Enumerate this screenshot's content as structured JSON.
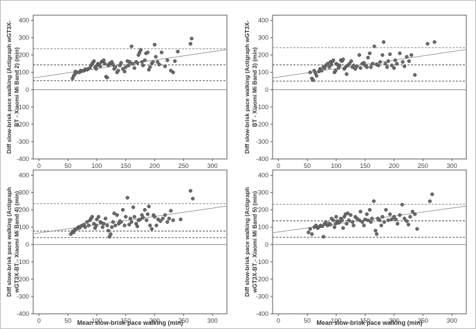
{
  "chart_data": [
    {
      "type": "scatter",
      "ylabel_lines": [
        "Diff slow-brisk pace walking (Actigraph wGT3X-",
        "BT - Xiaomi Mi Band 2) (min)"
      ],
      "xlabel": "",
      "xlim": [
        -10,
        325
      ],
      "ylim": [
        -400,
        430
      ],
      "x_ticks": [
        "0",
        "50",
        "100",
        "150",
        "200",
        "250",
        "300"
      ],
      "y_ticks": [
        "-400",
        "-300",
        "-200",
        "-100",
        "0",
        "100",
        "200",
        "300",
        "400"
      ],
      "grid": false,
      "zero_line": 0,
      "mean_diff": 143,
      "loa_upper": 236,
      "loa_lower": 52,
      "regression": {
        "x1": -10,
        "y1": 68,
        "x2": 325,
        "y2": 232
      },
      "points": [
        [
          58,
          65
        ],
        [
          60,
          80
        ],
        [
          62,
          90
        ],
        [
          63,
          105
        ],
        [
          66,
          100
        ],
        [
          70,
          100
        ],
        [
          72,
          110
        ],
        [
          75,
          108
        ],
        [
          78,
          110
        ],
        [
          80,
          118
        ],
        [
          83,
          115
        ],
        [
          85,
          120
        ],
        [
          88,
          125
        ],
        [
          90,
          140
        ],
        [
          92,
          150
        ],
        [
          94,
          160
        ],
        [
          95,
          165
        ],
        [
          97,
          130
        ],
        [
          99,
          120
        ],
        [
          100,
          140
        ],
        [
          102,
          150
        ],
        [
          104,
          145
        ],
        [
          106,
          135
        ],
        [
          108,
          160
        ],
        [
          110,
          165
        ],
        [
          112,
          170
        ],
        [
          114,
          150
        ],
        [
          116,
          75
        ],
        [
          118,
          70
        ],
        [
          120,
          140
        ],
        [
          122,
          150
        ],
        [
          124,
          155
        ],
        [
          126,
          160
        ],
        [
          128,
          145
        ],
        [
          130,
          120
        ],
        [
          132,
          130
        ],
        [
          135,
          100
        ],
        [
          137,
          110
        ],
        [
          140,
          140
        ],
        [
          142,
          155
        ],
        [
          145,
          120
        ],
        [
          148,
          105
        ],
        [
          150,
          130
        ],
        [
          153,
          165
        ],
        [
          155,
          140
        ],
        [
          157,
          160
        ],
        [
          160,
          250
        ],
        [
          162,
          150
        ],
        [
          165,
          125
        ],
        [
          168,
          160
        ],
        [
          170,
          155
        ],
        [
          172,
          200
        ],
        [
          174,
          215
        ],
        [
          176,
          230
        ],
        [
          178,
          160
        ],
        [
          180,
          140
        ],
        [
          183,
          170
        ],
        [
          185,
          210
        ],
        [
          188,
          215
        ],
        [
          190,
          115
        ],
        [
          192,
          130
        ],
        [
          195,
          150
        ],
        [
          197,
          160
        ],
        [
          200,
          260
        ],
        [
          202,
          190
        ],
        [
          205,
          160
        ],
        [
          208,
          145
        ],
        [
          212,
          215
        ],
        [
          218,
          135
        ],
        [
          222,
          170
        ],
        [
          228,
          110
        ],
        [
          232,
          100
        ],
        [
          235,
          165
        ],
        [
          240,
          220
        ],
        [
          262,
          265
        ],
        [
          264,
          295
        ]
      ]
    },
    {
      "type": "scatter",
      "ylabel_lines": [
        "Diff slow-brisk pace walking (Actigraph wGT3X-",
        "BT - Xiaomi Mi Band 3) (min)"
      ],
      "xlabel": "",
      "xlim": [
        -10,
        325
      ],
      "ylim": [
        -400,
        430
      ],
      "x_ticks": [
        "0",
        "50",
        "100",
        "150",
        "200",
        "250",
        "300"
      ],
      "y_ticks": [
        "-400",
        "-300",
        "-200",
        "-100",
        "0",
        "100",
        "200",
        "300",
        "400"
      ],
      "grid": false,
      "zero_line": 0,
      "mean_diff": 143,
      "loa_upper": 243,
      "loa_lower": 50,
      "regression": {
        "x1": -10,
        "y1": 68,
        "x2": 325,
        "y2": 232
      },
      "points": [
        [
          55,
          100
        ],
        [
          58,
          65
        ],
        [
          60,
          55
        ],
        [
          62,
          110
        ],
        [
          64,
          95
        ],
        [
          66,
          80
        ],
        [
          70,
          105
        ],
        [
          72,
          120
        ],
        [
          75,
          110
        ],
        [
          78,
          130
        ],
        [
          80,
          125
        ],
        [
          82,
          140
        ],
        [
          85,
          150
        ],
        [
          88,
          130
        ],
        [
          90,
          160
        ],
        [
          92,
          145
        ],
        [
          94,
          165
        ],
        [
          95,
          170
        ],
        [
          97,
          100
        ],
        [
          99,
          110
        ],
        [
          100,
          150
        ],
        [
          102,
          145
        ],
        [
          104,
          125
        ],
        [
          106,
          140
        ],
        [
          108,
          170
        ],
        [
          110,
          165
        ],
        [
          112,
          175
        ],
        [
          114,
          120
        ],
        [
          116,
          130
        ],
        [
          118,
          90
        ],
        [
          120,
          140
        ],
        [
          123,
          150
        ],
        [
          126,
          165
        ],
        [
          128,
          130
        ],
        [
          130,
          140
        ],
        [
          133,
          120
        ],
        [
          136,
          135
        ],
        [
          140,
          200
        ],
        [
          142,
          125
        ],
        [
          145,
          150
        ],
        [
          148,
          155
        ],
        [
          150,
          140
        ],
        [
          153,
          130
        ],
        [
          155,
          185
        ],
        [
          158,
          210
        ],
        [
          160,
          130
        ],
        [
          163,
          150
        ],
        [
          166,
          250
        ],
        [
          170,
          145
        ],
        [
          173,
          140
        ],
        [
          176,
          160
        ],
        [
          180,
          200
        ],
        [
          182,
          275
        ],
        [
          185,
          150
        ],
        [
          188,
          130
        ],
        [
          190,
          165
        ],
        [
          193,
          205
        ],
        [
          196,
          140
        ],
        [
          200,
          125
        ],
        [
          202,
          170
        ],
        [
          205,
          150
        ],
        [
          210,
          210
        ],
        [
          215,
          160
        ],
        [
          218,
          135
        ],
        [
          222,
          190
        ],
        [
          226,
          165
        ],
        [
          230,
          200
        ],
        [
          236,
          85
        ],
        [
          258,
          265
        ],
        [
          270,
          275
        ]
      ]
    },
    {
      "type": "scatter",
      "ylabel_lines": [
        "Diff slow-brisk pace walking (Actigraph",
        "wGT3X-BT - Xiaomi Mi Band 4) (min)"
      ],
      "xlabel": "Mean slow-brisk pace walking (min)",
      "xlim": [
        -10,
        325
      ],
      "ylim": [
        -400,
        430
      ],
      "x_ticks": [
        "0",
        "50",
        "100",
        "150",
        "200",
        "250",
        "300"
      ],
      "y_ticks": [
        "-400",
        "-300",
        "-200",
        "-100",
        "0",
        "100",
        "200",
        "300",
        "400"
      ],
      "grid": false,
      "zero_line": 0,
      "mean_diff": 78,
      "loa_upper": 236,
      "loa_lower": 40,
      "regression": {
        "x1": -10,
        "y1": 62,
        "x2": 325,
        "y2": 222
      },
      "points": [
        [
          55,
          60
        ],
        [
          58,
          75
        ],
        [
          60,
          70
        ],
        [
          62,
          85
        ],
        [
          65,
          90
        ],
        [
          68,
          100
        ],
        [
          70,
          95
        ],
        [
          72,
          105
        ],
        [
          75,
          110
        ],
        [
          78,
          115
        ],
        [
          80,
          100
        ],
        [
          83,
          130
        ],
        [
          86,
          110
        ],
        [
          88,
          140
        ],
        [
          90,
          150
        ],
        [
          92,
          160
        ],
        [
          95,
          120
        ],
        [
          97,
          95
        ],
        [
          99,
          110
        ],
        [
          100,
          145
        ],
        [
          103,
          160
        ],
        [
          106,
          130
        ],
        [
          108,
          125
        ],
        [
          110,
          100
        ],
        [
          112,
          120
        ],
        [
          115,
          150
        ],
        [
          118,
          110
        ],
        [
          120,
          80
        ],
        [
          122,
          45
        ],
        [
          124,
          60
        ],
        [
          126,
          100
        ],
        [
          128,
          130
        ],
        [
          130,
          180
        ],
        [
          132,
          110
        ],
        [
          135,
          170
        ],
        [
          138,
          120
        ],
        [
          140,
          135
        ],
        [
          142,
          130
        ],
        [
          145,
          200
        ],
        [
          148,
          110
        ],
        [
          150,
          160
        ],
        [
          153,
          270
        ],
        [
          156,
          115
        ],
        [
          158,
          150
        ],
        [
          160,
          130
        ],
        [
          163,
          215
        ],
        [
          165,
          160
        ],
        [
          168,
          120
        ],
        [
          170,
          105
        ],
        [
          172,
          140
        ],
        [
          175,
          145
        ],
        [
          178,
          170
        ],
        [
          180,
          155
        ],
        [
          183,
          200
        ],
        [
          186,
          140
        ],
        [
          188,
          175
        ],
        [
          190,
          220
        ],
        [
          192,
          110
        ],
        [
          195,
          90
        ],
        [
          198,
          170
        ],
        [
          200,
          160
        ],
        [
          203,
          110
        ],
        [
          206,
          145
        ],
        [
          210,
          135
        ],
        [
          214,
          150
        ],
        [
          218,
          170
        ],
        [
          222,
          130
        ],
        [
          225,
          150
        ],
        [
          228,
          195
        ],
        [
          232,
          140
        ],
        [
          245,
          145
        ],
        [
          262,
          310
        ],
        [
          266,
          265
        ]
      ]
    },
    {
      "type": "scatter",
      "ylabel_lines": [
        "Diff slow-brisk pace walking (Actigraph",
        "wGT3X-BT - Xiaomi Mi Band 5) (min)"
      ],
      "xlabel": "Mean slow-brisk pace walking (min)",
      "xlim": [
        -10,
        325
      ],
      "ylim": [
        -400,
        430
      ],
      "x_ticks": [
        "0",
        "50",
        "100",
        "150",
        "200",
        "250",
        "300"
      ],
      "y_ticks": [
        "-400",
        "-300",
        "-200",
        "-100",
        "0",
        "100",
        "200",
        "300",
        "400"
      ],
      "grid": false,
      "zero_line": 0,
      "mean_diff": 136,
      "loa_upper": 232,
      "loa_lower": 42,
      "regression": {
        "x1": -10,
        "y1": 68,
        "x2": 325,
        "y2": 222
      },
      "points": [
        [
          52,
          70
        ],
        [
          55,
          90
        ],
        [
          58,
          60
        ],
        [
          62,
          100
        ],
        [
          65,
          110
        ],
        [
          68,
          95
        ],
        [
          70,
          100
        ],
        [
          73,
          110
        ],
        [
          76,
          105
        ],
        [
          78,
          45
        ],
        [
          80,
          120
        ],
        [
          82,
          130
        ],
        [
          85,
          110
        ],
        [
          88,
          120
        ],
        [
          90,
          115
        ],
        [
          92,
          150
        ],
        [
          95,
          140
        ],
        [
          97,
          100
        ],
        [
          99,
          120
        ],
        [
          100,
          160
        ],
        [
          102,
          135
        ],
        [
          104,
          125
        ],
        [
          106,
          130
        ],
        [
          108,
          150
        ],
        [
          110,
          140
        ],
        [
          112,
          95
        ],
        [
          114,
          160
        ],
        [
          116,
          175
        ],
        [
          118,
          120
        ],
        [
          120,
          180
        ],
        [
          122,
          140
        ],
        [
          125,
          170
        ],
        [
          128,
          130
        ],
        [
          130,
          110
        ],
        [
          133,
          160
        ],
        [
          136,
          150
        ],
        [
          140,
          140
        ],
        [
          142,
          190
        ],
        [
          145,
          130
        ],
        [
          148,
          110
        ],
        [
          150,
          145
        ],
        [
          153,
          175
        ],
        [
          155,
          140
        ],
        [
          158,
          200
        ],
        [
          160,
          130
        ],
        [
          162,
          150
        ],
        [
          165,
          250
        ],
        [
          168,
          80
        ],
        [
          170,
          60
        ],
        [
          172,
          150
        ],
        [
          175,
          140
        ],
        [
          178,
          110
        ],
        [
          180,
          160
        ],
        [
          183,
          130
        ],
        [
          186,
          200
        ],
        [
          190,
          140
        ],
        [
          193,
          175
        ],
        [
          196,
          145
        ],
        [
          200,
          160
        ],
        [
          203,
          145
        ],
        [
          206,
          120
        ],
        [
          210,
          170
        ],
        [
          214,
          230
        ],
        [
          218,
          150
        ],
        [
          222,
          135
        ],
        [
          225,
          115
        ],
        [
          228,
          160
        ],
        [
          232,
          190
        ],
        [
          236,
          175
        ],
        [
          240,
          90
        ],
        [
          262,
          250
        ],
        [
          266,
          290
        ]
      ]
    }
  ]
}
